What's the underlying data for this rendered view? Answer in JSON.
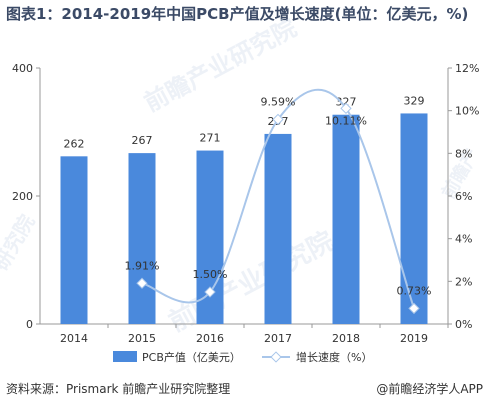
{
  "title": "图表1：2014-2019年中国PCB产值及增长速度(单位：亿美元，%)",
  "watermark": "前瞻产业研究院",
  "source": "资料来源：Prismark 前瞻产业研究院整理",
  "brand": "@前瞻经济学人APP",
  "colors": {
    "bar": "#4a89dc",
    "line": "#a9c6ea",
    "marker": "#a9c6ea",
    "text": "#333333",
    "title": "#3b4a66"
  },
  "chart_data": {
    "type": "bar",
    "categories": [
      "2014",
      "2015",
      "2016",
      "2017",
      "2018",
      "2019"
    ],
    "series": [
      {
        "name": "PCB产值（亿美元）",
        "type": "bar",
        "axis": "left",
        "values": [
          262,
          267,
          271,
          297,
          327,
          329
        ],
        "labels": [
          "262",
          "267",
          "271",
          "297",
          "327",
          "329"
        ]
      },
      {
        "name": "增长速度（%）",
        "type": "line",
        "axis": "right",
        "smooth": true,
        "values": [
          null,
          1.91,
          1.5,
          9.59,
          10.11,
          0.73
        ],
        "labels": [
          "",
          "1.91%",
          "1.50%",
          "9.59%",
          "10.11%",
          "0.73%"
        ]
      }
    ],
    "y_left": {
      "min": 0,
      "max": 400,
      "ticks": [
        0,
        200,
        400
      ]
    },
    "y_right": {
      "min": 0,
      "max": 12,
      "ticks": [
        "0%",
        "2%",
        "4%",
        "6%",
        "8%",
        "10%",
        "12%"
      ]
    },
    "grid": false,
    "legend_position": "bottom"
  }
}
